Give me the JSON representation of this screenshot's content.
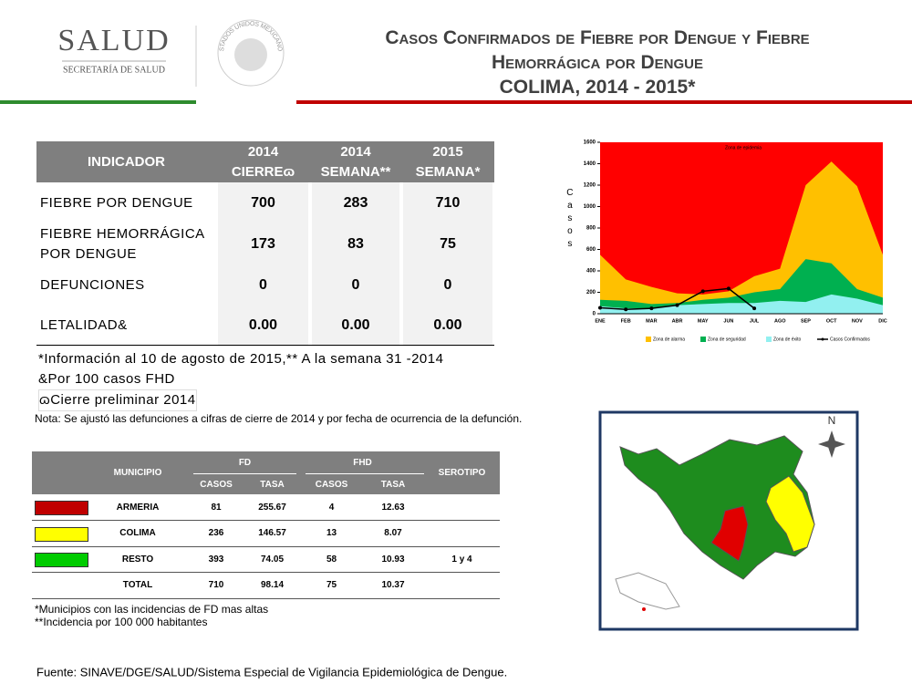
{
  "header": {
    "logo_title": "SALUD",
    "logo_subtitle": "SECRETARÍA DE SALUD",
    "seal_text": "ESTADOS UNIDOS MEXICANOS",
    "title_lines": [
      "Casos Confirmados de Fiebre por Dengue y Fiebre",
      "Hemorrágica por Dengue",
      "COLIMA, 2014 - 2015*"
    ]
  },
  "indicators": {
    "columns": [
      [
        "INDICADOR"
      ],
      [
        "2014",
        "CIERREɷ"
      ],
      [
        "2014",
        "SEMANA**"
      ],
      [
        "2015",
        "SEMANA*"
      ]
    ],
    "rows": [
      [
        "FIEBRE POR DENGUE",
        700,
        283,
        710
      ],
      [
        "FIEBRE HEMORRÁGICA POR DENGUE",
        173,
        83,
        75
      ],
      [
        "DEFUNCIONES",
        0,
        0,
        0
      ],
      [
        "LETALIDAD&",
        "0.00",
        "0.00",
        "0.00"
      ]
    ],
    "notes": [
      "*Información al 10 de agosto  de 2015,** A la semana 31 -2014",
      "&Por 100 casos FHD",
      "ɷCierre preliminar 2014"
    ],
    "nota": "Nota: Se ajustó las defunciones a cifras de cierre de 2014 y por fecha de ocurrencia de la defunción."
  },
  "municipios": {
    "headers": {
      "municipio": "MUNICIPIO",
      "fd": "FD",
      "fhd": "FHD",
      "serotipo": "SEROTIPO",
      "sub": [
        "CASOS",
        "TASA",
        "CASOS",
        "TASA"
      ]
    },
    "rows": [
      {
        "color": "#c00000",
        "name": "ARMERIA",
        "values": [
          81,
          255.67,
          4,
          12.63
        ]
      },
      {
        "color": "#ffff00",
        "name": "COLIMA",
        "values": [
          236,
          146.57,
          13,
          8.07
        ]
      },
      {
        "color": "#00cc00",
        "name": "RESTO",
        "values": [
          393,
          74.05,
          58,
          10.93
        ],
        "serotipo": "1 y 4"
      },
      {
        "name": "TOTAL",
        "values": [
          710,
          98.14,
          75,
          10.37
        ]
      }
    ],
    "notes": [
      "*Municipios con las incidencias de FD mas altas",
      "**Incidencia por 100 000 habitantes"
    ]
  },
  "chart": {
    "type": "area",
    "background_label": "Zona de epidemia",
    "background_color": "#ff0000",
    "ylabel": "Casos",
    "categories": [
      "ENE",
      "FEB",
      "MAR",
      "ABR",
      "MAY",
      "JUN",
      "JUL",
      "AGO",
      "SEP",
      "OCT",
      "NOV",
      "DIC"
    ],
    "ylim": [
      0,
      1600
    ],
    "yticks": [
      0,
      200,
      400,
      600,
      800,
      1000,
      1200,
      1400,
      1600
    ],
    "series": [
      {
        "name": "Zona de alarma",
        "color": "#ffc000",
        "values": [
          550,
          320,
          250,
          190,
          180,
          210,
          350,
          420,
          1200,
          1420,
          1190,
          550
        ]
      },
      {
        "name": "Zona de seguridad",
        "color": "#00b050",
        "values": [
          130,
          120,
          90,
          100,
          130,
          150,
          200,
          230,
          510,
          470,
          230,
          150
        ]
      },
      {
        "name": "Zona de éxito",
        "color": "#92f0f0",
        "values": [
          70,
          50,
          50,
          80,
          90,
          100,
          100,
          120,
          110,
          180,
          140,
          80
        ]
      },
      {
        "name": "Casos Confirmados",
        "color": "#000000",
        "line": true,
        "values": [
          55,
          40,
          50,
          80,
          210,
          235,
          50,
          null,
          null,
          null,
          null,
          null
        ]
      }
    ]
  },
  "map": {
    "north": "N"
  },
  "footer": "Fuente: SINAVE/DGE/SALUD/Sistema Especial de Vigilancia Epidemiológica de Dengue."
}
